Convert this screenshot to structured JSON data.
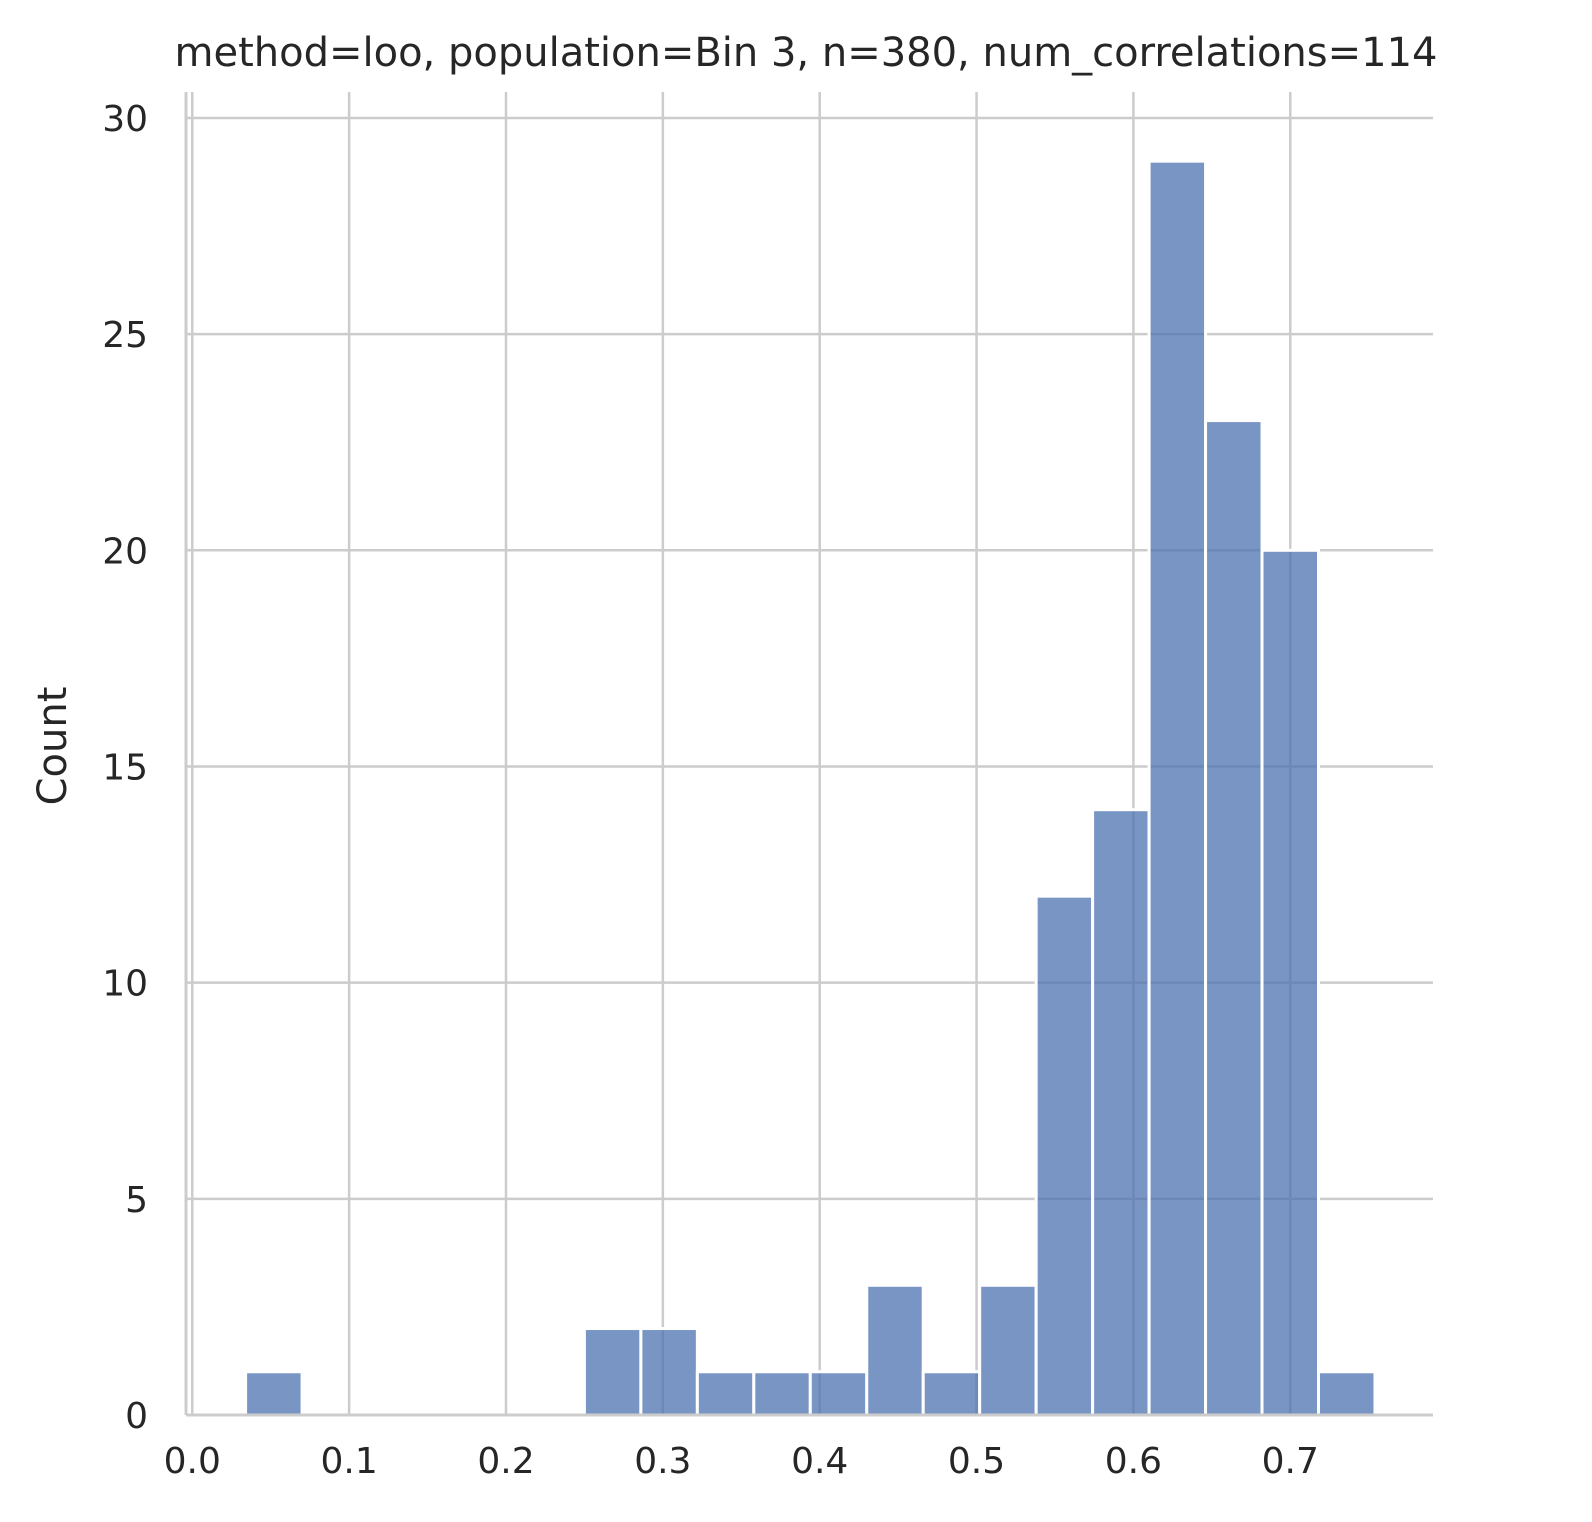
{
  "chart_data": {
    "type": "bar",
    "title": "method=loo, population=Bin 3, n=380, num_correlations=114",
    "xlabel": "",
    "ylabel": "Count",
    "xlim": [
      -0.004,
      0.791
    ],
    "ylim": [
      0,
      30.6
    ],
    "xticks": [
      "0.0",
      "0.1",
      "0.2",
      "0.3",
      "0.4",
      "0.5",
      "0.6",
      "0.7"
    ],
    "yticks": [
      "0",
      "5",
      "10",
      "15",
      "20",
      "25",
      "30"
    ],
    "grid": true,
    "bar_color": "#4c72b0",
    "bar_alpha": 0.75,
    "bins": [
      {
        "x0": 0.034,
        "x1": 0.07,
        "count": 1
      },
      {
        "x0": 0.07,
        "x1": 0.106,
        "count": 0
      },
      {
        "x0": 0.106,
        "x1": 0.142,
        "count": 0
      },
      {
        "x0": 0.142,
        "x1": 0.178,
        "count": 0
      },
      {
        "x0": 0.178,
        "x1": 0.214,
        "count": 0
      },
      {
        "x0": 0.214,
        "x1": 0.25,
        "count": 0
      },
      {
        "x0": 0.25,
        "x1": 0.286,
        "count": 2
      },
      {
        "x0": 0.286,
        "x1": 0.322,
        "count": 2
      },
      {
        "x0": 0.322,
        "x1": 0.358,
        "count": 1
      },
      {
        "x0": 0.358,
        "x1": 0.394,
        "count": 1
      },
      {
        "x0": 0.394,
        "x1": 0.43,
        "count": 1
      },
      {
        "x0": 0.43,
        "x1": 0.466,
        "count": 3
      },
      {
        "x0": 0.466,
        "x1": 0.502,
        "count": 1
      },
      {
        "x0": 0.502,
        "x1": 0.538,
        "count": 3
      },
      {
        "x0": 0.538,
        "x1": 0.574,
        "count": 12
      },
      {
        "x0": 0.574,
        "x1": 0.61,
        "count": 14
      },
      {
        "x0": 0.61,
        "x1": 0.646,
        "count": 29
      },
      {
        "x0": 0.646,
        "x1": 0.682,
        "count": 23
      },
      {
        "x0": 0.682,
        "x1": 0.718,
        "count": 20
      },
      {
        "x0": 0.718,
        "x1": 0.754,
        "count": 1
      }
    ]
  }
}
